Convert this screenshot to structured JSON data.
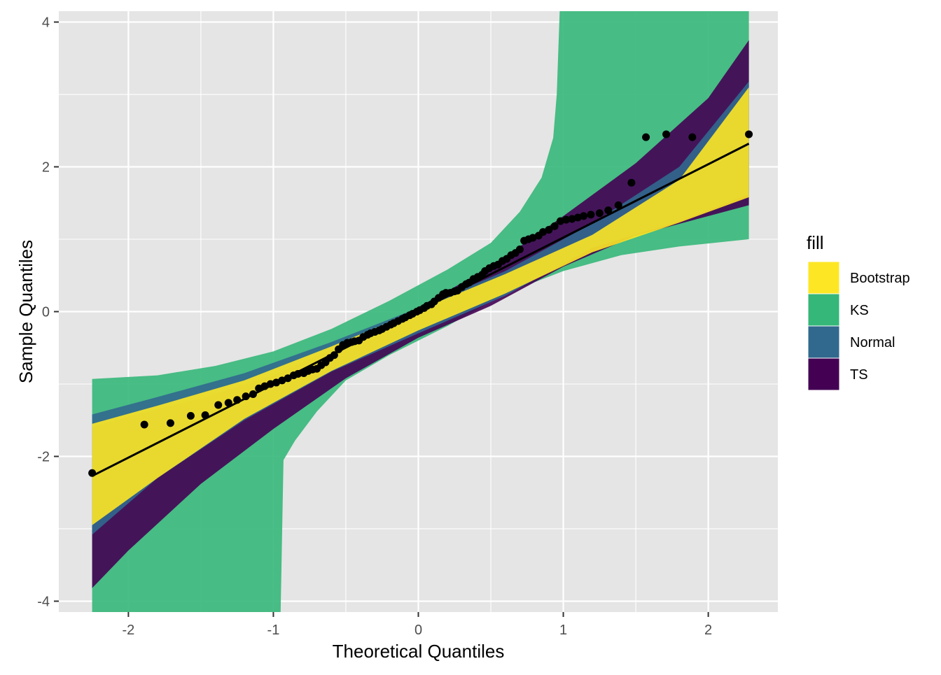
{
  "chart_data": {
    "type": "scatter",
    "xlabel": "Theoretical Quantiles",
    "ylabel": "Sample Quantiles",
    "xlim": [
      -2.48,
      2.48
    ],
    "ylim": [
      -4.15,
      4.15
    ],
    "x_ticks": [
      -2,
      -1,
      0,
      1,
      2
    ],
    "x_tick_labels": [
      "-2",
      "-1",
      "0",
      "1",
      "2"
    ],
    "y_ticks": [
      -4,
      -2,
      0,
      2,
      4
    ],
    "y_tick_labels": [
      "-4",
      "-2",
      "0",
      "2",
      "4"
    ],
    "grid": true,
    "background_color": "#e5e5e5",
    "legend": {
      "title": "fill",
      "position": "right",
      "entries": [
        {
          "label": "Bootstrap",
          "color": "#fde725"
        },
        {
          "label": "KS",
          "color": "#35b779"
        },
        {
          "label": "Normal",
          "color": "#31688e"
        },
        {
          "label": "TS",
          "color": "#440154"
        }
      ]
    },
    "bands": [
      {
        "name": "KS",
        "color": "#35b779",
        "upper": [
          [
            -2.25,
            -0.93
          ],
          [
            -1.8,
            -0.88
          ],
          [
            -1.4,
            -0.75
          ],
          [
            -1.0,
            -0.55
          ],
          [
            -0.6,
            -0.24
          ],
          [
            -0.2,
            0.15
          ],
          [
            0.2,
            0.58
          ],
          [
            0.5,
            0.95
          ],
          [
            0.7,
            1.38
          ],
          [
            0.85,
            1.85
          ],
          [
            0.93,
            2.4
          ],
          [
            0.955,
            3.0
          ],
          [
            0.975,
            4.15
          ],
          [
            2.28,
            4.15
          ]
        ],
        "lower": [
          [
            -2.25,
            -4.15
          ],
          [
            -0.95,
            -4.15
          ],
          [
            -0.93,
            -2.05
          ],
          [
            -0.85,
            -1.78
          ],
          [
            -0.7,
            -1.38
          ],
          [
            -0.5,
            -0.95
          ],
          [
            -0.2,
            -0.6
          ],
          [
            0.2,
            -0.2
          ],
          [
            0.6,
            0.25
          ],
          [
            1.0,
            0.56
          ],
          [
            1.4,
            0.78
          ],
          [
            1.8,
            0.9
          ],
          [
            2.28,
            1.0
          ]
        ]
      },
      {
        "name": "TS",
        "color": "#440154",
        "upper": [
          [
            -2.25,
            -1.6
          ],
          [
            -2.0,
            -1.45
          ],
          [
            -1.5,
            -1.2
          ],
          [
            -1.0,
            -0.88
          ],
          [
            -0.5,
            -0.44
          ],
          [
            0.0,
            0.06
          ],
          [
            0.5,
            0.62
          ],
          [
            1.0,
            1.32
          ],
          [
            1.5,
            2.05
          ],
          [
            2.0,
            2.95
          ],
          [
            2.28,
            3.75
          ]
        ],
        "lower": [
          [
            -2.25,
            -3.82
          ],
          [
            -2.0,
            -3.3
          ],
          [
            -1.5,
            -2.38
          ],
          [
            -1.0,
            -1.62
          ],
          [
            -0.5,
            -0.92
          ],
          [
            0.0,
            -0.36
          ],
          [
            0.5,
            0.08
          ],
          [
            1.0,
            0.62
          ],
          [
            1.5,
            1.05
          ],
          [
            2.0,
            1.32
          ],
          [
            2.28,
            1.47
          ]
        ]
      },
      {
        "name": "Normal",
        "color": "#31688e",
        "upper": [
          [
            -2.25,
            -1.42
          ],
          [
            -1.8,
            -1.18
          ],
          [
            -1.2,
            -0.85
          ],
          [
            -0.6,
            -0.42
          ],
          [
            0.0,
            0.05
          ],
          [
            0.6,
            0.56
          ],
          [
            1.2,
            1.22
          ],
          [
            1.8,
            2.0
          ],
          [
            2.28,
            3.18
          ]
        ],
        "lower": [
          [
            -2.25,
            -3.08
          ],
          [
            -1.8,
            -2.3
          ],
          [
            -1.2,
            -1.5
          ],
          [
            -0.6,
            -0.83
          ],
          [
            0.0,
            -0.3
          ],
          [
            0.6,
            0.22
          ],
          [
            1.2,
            0.88
          ],
          [
            1.8,
            1.25
          ],
          [
            2.28,
            1.62
          ]
        ]
      },
      {
        "name": "Bootstrap",
        "color": "#fde725",
        "upper": [
          [
            -2.25,
            -1.55
          ],
          [
            -1.8,
            -1.3
          ],
          [
            -1.2,
            -0.95
          ],
          [
            -0.6,
            -0.48
          ],
          [
            0.0,
            0.02
          ],
          [
            0.6,
            0.52
          ],
          [
            1.2,
            1.06
          ],
          [
            1.8,
            1.82
          ],
          [
            2.28,
            3.1
          ]
        ],
        "lower": [
          [
            -2.25,
            -2.95
          ],
          [
            -1.8,
            -2.3
          ],
          [
            -1.2,
            -1.48
          ],
          [
            -0.6,
            -0.82
          ],
          [
            0.0,
            -0.26
          ],
          [
            0.6,
            0.25
          ],
          [
            1.2,
            0.82
          ],
          [
            1.8,
            1.23
          ],
          [
            2.28,
            1.58
          ]
        ]
      }
    ],
    "line": {
      "x": [
        -2.25,
        2.28
      ],
      "y": [
        -2.27,
        2.32
      ]
    },
    "points": {
      "x": [
        -2.25,
        -1.89,
        -1.71,
        -1.57,
        -1.47,
        -1.38,
        -1.31,
        -1.25,
        -1.19,
        -1.14,
        -1.1,
        -1.06,
        -1.02,
        -0.98,
        -0.94,
        -0.9,
        -0.86,
        -0.83,
        -0.79,
        -0.76,
        -0.73,
        -0.7,
        -0.67,
        -0.64,
        -0.61,
        -0.58,
        -0.55,
        -0.52,
        -0.49,
        -0.46,
        -0.44,
        -0.41,
        -0.38,
        -0.35,
        -0.33,
        -0.3,
        -0.27,
        -0.25,
        -0.22,
        -0.19,
        -0.17,
        -0.14,
        -0.11,
        -0.09,
        -0.06,
        -0.04,
        -0.01,
        0.01,
        0.04,
        0.06,
        0.09,
        0.11,
        0.14,
        0.17,
        0.19,
        0.22,
        0.25,
        0.27,
        0.3,
        0.33,
        0.35,
        0.38,
        0.41,
        0.44,
        0.46,
        0.49,
        0.52,
        0.55,
        0.58,
        0.61,
        0.64,
        0.67,
        0.7,
        0.73,
        0.76,
        0.79,
        0.83,
        0.86,
        0.9,
        0.94,
        0.98,
        1.02,
        1.06,
        1.1,
        1.14,
        1.19,
        1.25,
        1.31,
        1.38,
        1.47,
        1.57,
        1.71,
        1.89,
        2.28
      ],
      "y": [
        -2.23,
        -1.56,
        -1.54,
        -1.44,
        -1.43,
        -1.29,
        -1.26,
        -1.22,
        -1.17,
        -1.14,
        -1.06,
        -1.03,
        -1.0,
        -0.98,
        -0.95,
        -0.92,
        -0.88,
        -0.86,
        -0.85,
        -0.82,
        -0.8,
        -0.79,
        -0.74,
        -0.7,
        -0.64,
        -0.6,
        -0.52,
        -0.46,
        -0.43,
        -0.42,
        -0.41,
        -0.4,
        -0.35,
        -0.32,
        -0.3,
        -0.28,
        -0.26,
        -0.24,
        -0.21,
        -0.18,
        -0.16,
        -0.13,
        -0.1,
        -0.08,
        -0.05,
        -0.03,
        0.0,
        0.02,
        0.05,
        0.08,
        0.1,
        0.14,
        0.19,
        0.24,
        0.26,
        0.26,
        0.28,
        0.29,
        0.34,
        0.38,
        0.4,
        0.45,
        0.48,
        0.51,
        0.56,
        0.6,
        0.63,
        0.65,
        0.7,
        0.73,
        0.78,
        0.81,
        0.86,
        0.98,
        1.0,
        1.02,
        1.05,
        1.1,
        1.13,
        1.18,
        1.25,
        1.27,
        1.28,
        1.3,
        1.32,
        1.34,
        1.36,
        1.4,
        1.47,
        1.78,
        2.41,
        2.45,
        2.41,
        2.45
      ]
    }
  }
}
